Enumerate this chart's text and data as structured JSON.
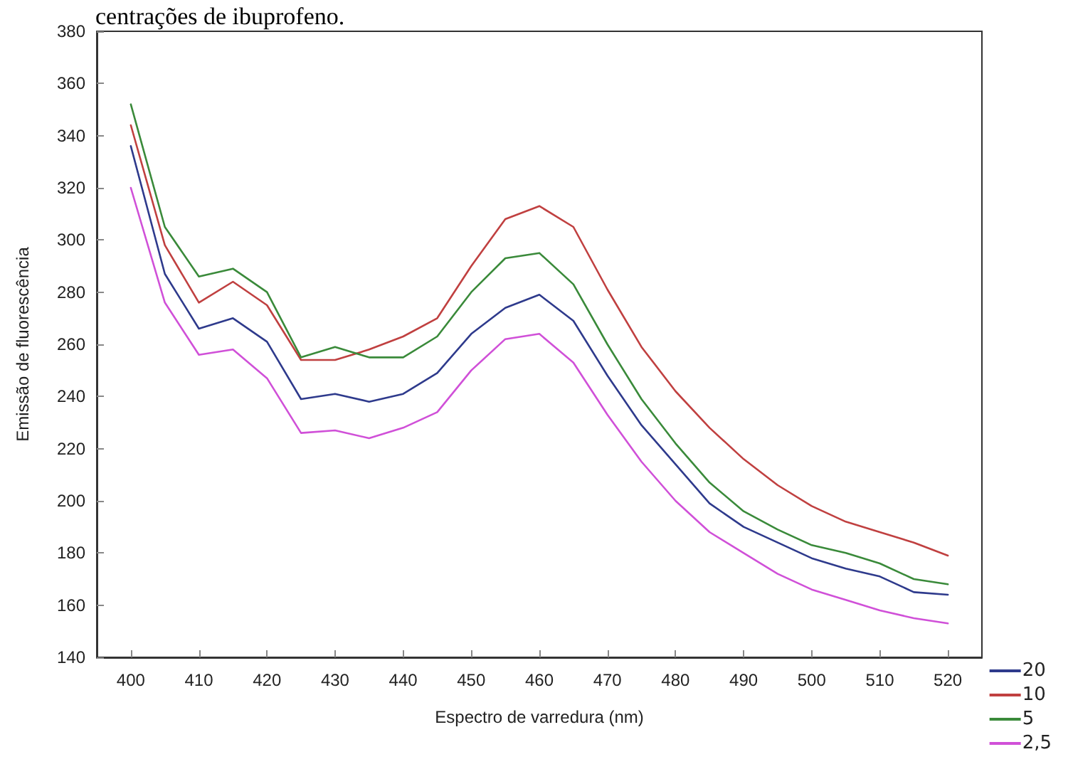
{
  "chart_data": {
    "type": "line",
    "title": "centrações de ibuprofeno.",
    "xlabel": "Espectro de varredura (nm)",
    "ylabel": "Emissão de fluorescência",
    "x": [
      400,
      405,
      410,
      415,
      420,
      425,
      430,
      435,
      440,
      445,
      450,
      455,
      460,
      465,
      470,
      475,
      480,
      485,
      490,
      495,
      500,
      505,
      510,
      515,
      520
    ],
    "xlim": [
      395,
      525
    ],
    "xticks": [
      400,
      410,
      420,
      430,
      440,
      450,
      460,
      470,
      480,
      490,
      500,
      510,
      520
    ],
    "ylim": [
      140,
      380
    ],
    "yticks": [
      140,
      160,
      180,
      200,
      220,
      240,
      260,
      280,
      300,
      320,
      340,
      360,
      380
    ],
    "grid": false,
    "legend": "bottom right",
    "marker": "none",
    "line_style": "solid",
    "series": [
      {
        "name": "20",
        "color": "#2e3a8c",
        "values": [
          336,
          287,
          266,
          270,
          261,
          239,
          241,
          238,
          241,
          249,
          264,
          274,
          279,
          269,
          248,
          229,
          214,
          199,
          190,
          184,
          178,
          174,
          171,
          165,
          164
        ]
      },
      {
        "name": "10",
        "color": "#c04040",
        "values": [
          344,
          298,
          276,
          284,
          275,
          254,
          254,
          258,
          263,
          270,
          290,
          308,
          313,
          305,
          281,
          259,
          242,
          228,
          216,
          206,
          198,
          192,
          188,
          184,
          179
        ]
      },
      {
        "name": "5",
        "color": "#3a8a3a",
        "values": [
          352,
          305,
          286,
          289,
          280,
          255,
          259,
          255,
          255,
          263,
          280,
          293,
          295,
          283,
          260,
          239,
          222,
          207,
          196,
          189,
          183,
          180,
          176,
          170,
          168
        ]
      },
      {
        "name": "2,5",
        "color": "#d050d8",
        "values": [
          320,
          276,
          256,
          258,
          247,
          226,
          227,
          224,
          228,
          234,
          250,
          262,
          264,
          253,
          233,
          215,
          200,
          188,
          180,
          172,
          166,
          162,
          158,
          155,
          153
        ]
      }
    ]
  }
}
